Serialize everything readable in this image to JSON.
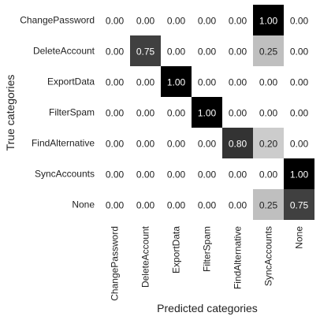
{
  "chart_data": {
    "type": "heatmap",
    "title": "",
    "xlabel": "Predicted categories",
    "ylabel": "True categories",
    "x_categories": [
      "ChangePassword",
      "DeleteAccount",
      "ExportData",
      "FilterSpam",
      "FindAlternative",
      "SyncAccounts",
      "None"
    ],
    "y_categories": [
      "ChangePassword",
      "DeleteAccount",
      "ExportData",
      "FilterSpam",
      "FindAlternative",
      "SyncAccounts",
      "None"
    ],
    "values": [
      [
        0.0,
        0.0,
        0.0,
        0.0,
        0.0,
        1.0,
        0.0
      ],
      [
        0.0,
        0.75,
        0.0,
        0.0,
        0.0,
        0.25,
        0.0
      ],
      [
        0.0,
        0.0,
        1.0,
        0.0,
        0.0,
        0.0,
        0.0
      ],
      [
        0.0,
        0.0,
        0.0,
        1.0,
        0.0,
        0.0,
        0.0
      ],
      [
        0.0,
        0.0,
        0.0,
        0.0,
        0.8,
        0.2,
        0.0
      ],
      [
        0.0,
        0.0,
        0.0,
        0.0,
        0.0,
        0.0,
        1.0
      ],
      [
        0.0,
        0.0,
        0.0,
        0.0,
        0.0,
        0.25,
        0.75
      ]
    ],
    "value_range": [
      0,
      1
    ],
    "colormap": "white-to-black",
    "value_format": "2-decimals",
    "grid": false,
    "legend": "none"
  }
}
